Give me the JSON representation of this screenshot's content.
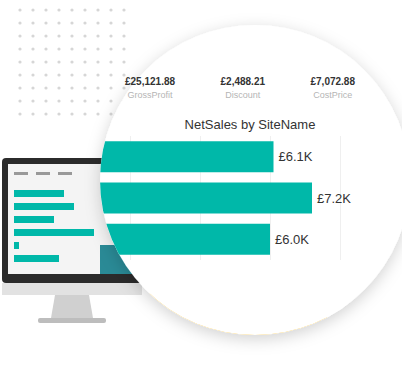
{
  "kpis": [
    {
      "value": "£25,121.88",
      "label": "GrossProfit"
    },
    {
      "value": "£2,488.21",
      "label": "Discount"
    },
    {
      "value": "£7,072.88",
      "label": "CostPrice"
    }
  ],
  "chart_data": {
    "type": "bar",
    "title": "NetSales by SiteName",
    "orientation": "horizontal",
    "categories": [
      null,
      null,
      null
    ],
    "values": [
      6100,
      7200,
      6000
    ],
    "value_labels": [
      "£6.1K",
      "£7.2K",
      "£6.0K"
    ],
    "color": "#00b8a9",
    "data_labels": true,
    "xlim": [
      0,
      8000
    ],
    "xticks": [
      0,
      2000,
      4000,
      6000,
      8000
    ],
    "grid": true,
    "tick_labels": false
  }
}
